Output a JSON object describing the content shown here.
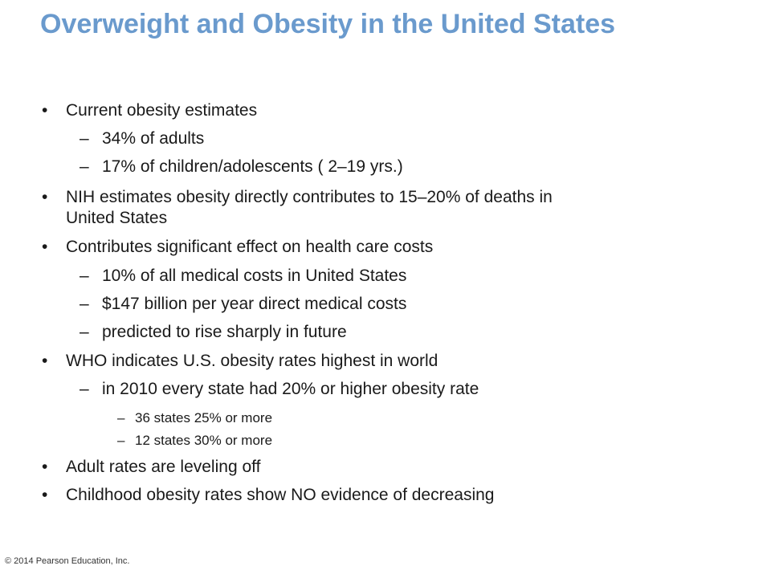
{
  "slide": {
    "title": "Overweight and Obesity in the United States",
    "markers": {
      "level1": "•",
      "level2": "–",
      "level3": "–"
    },
    "items": [
      {
        "text": "Current obesity estimates"
      },
      {
        "text": "34% of adults"
      },
      {
        "text": "17% of children/adolescents ( 2–19 yrs.)"
      },
      {
        "text": "NIH estimates obesity directly contributes to 15–20% of deaths in"
      },
      {
        "text": "United States"
      },
      {
        "text": "Contributes significant effect on health care costs"
      },
      {
        "text": "10% of all medical costs in United States"
      },
      {
        "text": "$147 billion per year direct medical costs"
      },
      {
        "text": "predicted to rise sharply in future"
      },
      {
        "text": "WHO indicates U.S. obesity rates highest in world"
      },
      {
        "text": "in 2010 every state had 20% or higher obesity rate"
      },
      {
        "text": "36 states 25% or more"
      },
      {
        "text": "12 states 30% or more"
      },
      {
        "text": "Adult rates are leveling off"
      },
      {
        "text": "Childhood obesity rates show NO evidence of decreasing"
      }
    ],
    "copyright": "© 2014 Pearson Education, Inc."
  }
}
